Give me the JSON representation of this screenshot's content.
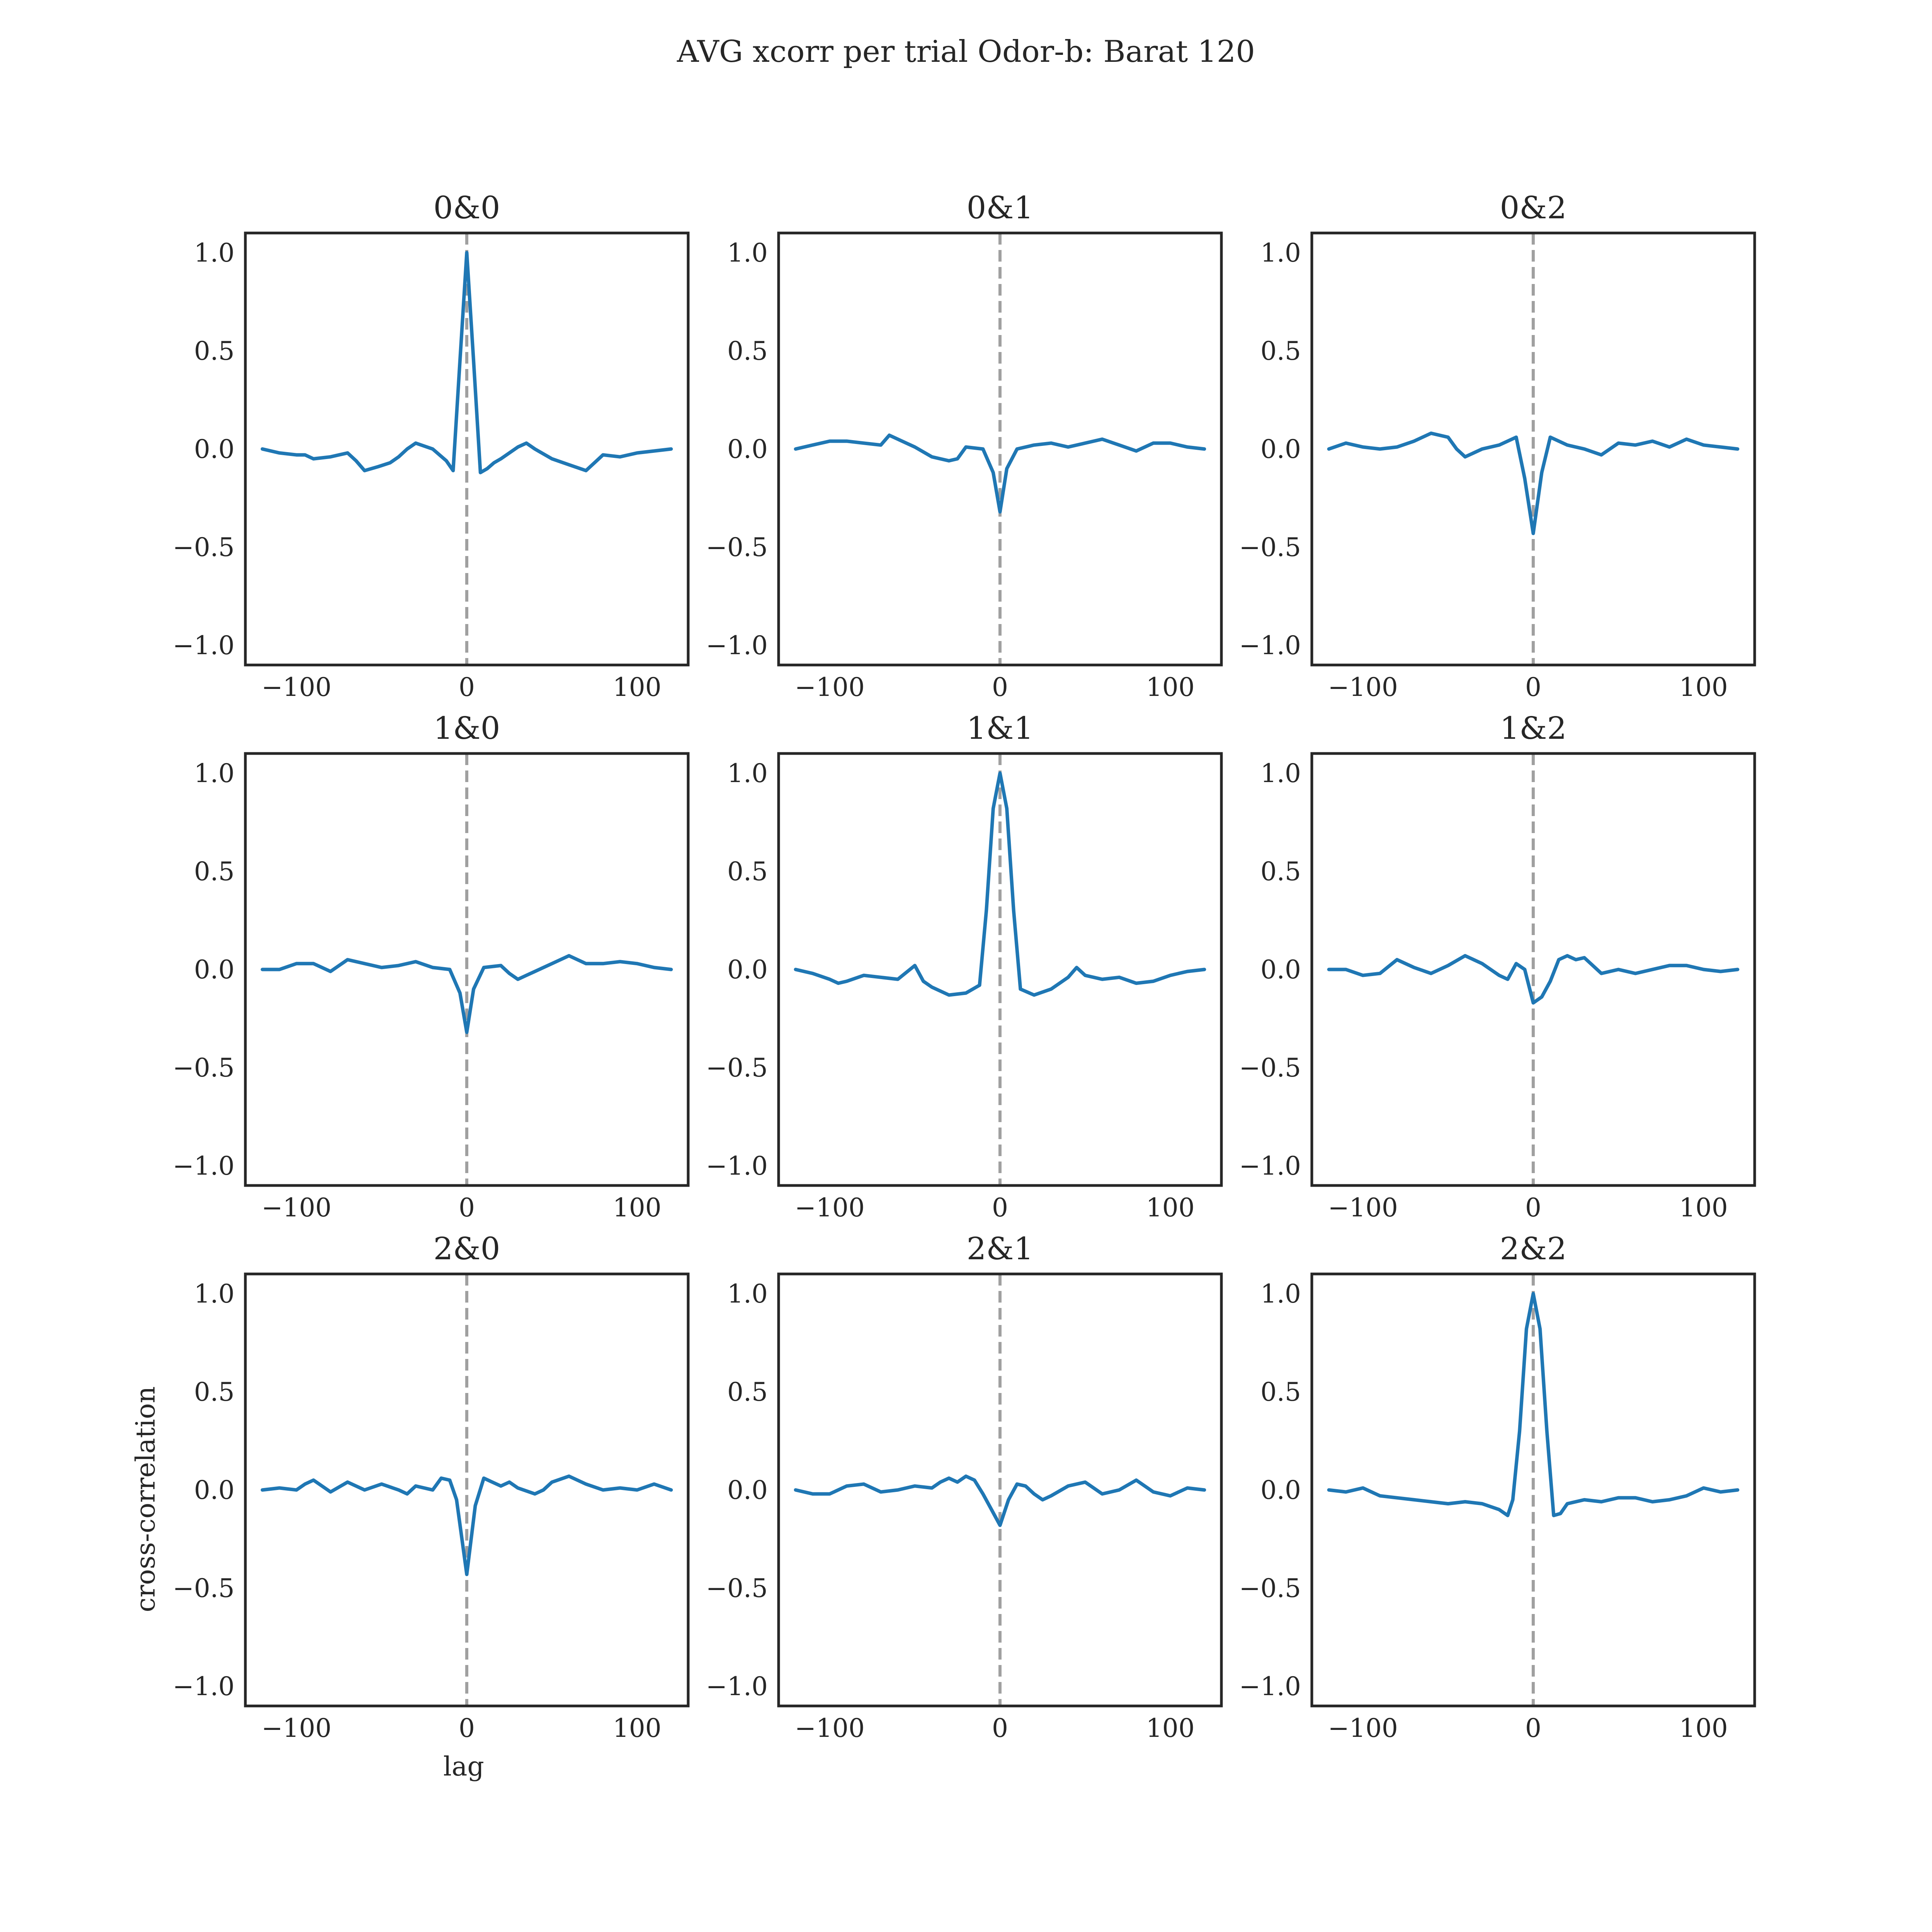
{
  "figure": {
    "title": "AVG xcorr per trial Odor-b: Barat 120",
    "xlabel": "lag",
    "ylabel": "cross-correlation"
  },
  "colors": {
    "line": "#1f77b4",
    "zero_line": "#a0a0a0",
    "axes_frame": "#262626",
    "background": "#ffffff"
  },
  "chart_data": [
    {
      "type": "line",
      "title": "0&0",
      "x": [
        -120,
        -110,
        -100,
        -95,
        -90,
        -80,
        -70,
        -65,
        -60,
        -52,
        -45,
        -40,
        -35,
        -30,
        -20,
        -12,
        -8,
        -4,
        0,
        4,
        8,
        12,
        16,
        20,
        30,
        35,
        40,
        50,
        60,
        70,
        75,
        80,
        90,
        100,
        110,
        120
      ],
      "y": [
        0.0,
        -0.02,
        -0.03,
        -0.03,
        -0.05,
        -0.04,
        -0.02,
        -0.06,
        -0.11,
        -0.09,
        -0.07,
        -0.04,
        0.0,
        0.03,
        0.0,
        -0.06,
        -0.11,
        0.45,
        1.0,
        0.45,
        -0.12,
        -0.1,
        -0.07,
        -0.05,
        0.01,
        0.03,
        0.0,
        -0.05,
        -0.08,
        -0.11,
        -0.07,
        -0.03,
        -0.04,
        -0.02,
        -0.01,
        0.0
      ],
      "xlim": [
        -130,
        130
      ],
      "ylim": [
        -1.1,
        1.1
      ],
      "xticks": [
        -100,
        0,
        100
      ],
      "yticks": [
        1.0,
        0.5,
        0.0,
        -0.5,
        -1.0
      ]
    },
    {
      "type": "line",
      "title": "0&1",
      "x": [
        -120,
        -110,
        -100,
        -90,
        -80,
        -70,
        -65,
        -60,
        -50,
        -40,
        -30,
        -25,
        -20,
        -10,
        -4,
        0,
        4,
        10,
        20,
        30,
        40,
        50,
        60,
        70,
        80,
        90,
        100,
        110,
        120
      ],
      "y": [
        0.0,
        0.02,
        0.04,
        0.04,
        0.03,
        0.02,
        0.07,
        0.05,
        0.01,
        -0.04,
        -0.06,
        -0.05,
        0.01,
        0.0,
        -0.12,
        -0.32,
        -0.1,
        0.0,
        0.02,
        0.03,
        0.01,
        0.03,
        0.05,
        0.02,
        -0.01,
        0.03,
        0.03,
        0.01,
        0.0
      ],
      "xlim": [
        -130,
        130
      ],
      "ylim": [
        -1.1,
        1.1
      ],
      "xticks": [
        -100,
        0,
        100
      ],
      "yticks": [
        1.0,
        0.5,
        0.0,
        -0.5,
        -1.0
      ]
    },
    {
      "type": "line",
      "title": "0&2",
      "x": [
        -120,
        -110,
        -100,
        -90,
        -80,
        -70,
        -60,
        -50,
        -45,
        -40,
        -30,
        -20,
        -10,
        -5,
        0,
        5,
        10,
        20,
        30,
        40,
        50,
        60,
        70,
        80,
        90,
        100,
        110,
        120
      ],
      "y": [
        0.0,
        0.03,
        0.01,
        0.0,
        0.01,
        0.04,
        0.08,
        0.06,
        0.0,
        -0.04,
        0.0,
        0.02,
        0.06,
        -0.15,
        -0.43,
        -0.12,
        0.06,
        0.02,
        0.0,
        -0.03,
        0.03,
        0.02,
        0.04,
        0.01,
        0.05,
        0.02,
        0.01,
        0.0
      ],
      "xlim": [
        -130,
        130
      ],
      "ylim": [
        -1.1,
        1.1
      ],
      "xticks": [
        -100,
        0,
        100
      ],
      "yticks": [
        1.0,
        0.5,
        0.0,
        -0.5,
        -1.0
      ]
    },
    {
      "type": "line",
      "title": "1&0",
      "x": [
        -120,
        -110,
        -100,
        -90,
        -80,
        -70,
        -60,
        -50,
        -40,
        -30,
        -20,
        -10,
        -4,
        0,
        4,
        10,
        20,
        25,
        30,
        35,
        40,
        50,
        60,
        70,
        80,
        90,
        100,
        110,
        120
      ],
      "y": [
        0.0,
        0.0,
        0.03,
        0.03,
        -0.01,
        0.05,
        0.03,
        0.01,
        0.02,
        0.04,
        0.01,
        0.0,
        -0.12,
        -0.32,
        -0.1,
        0.01,
        0.02,
        -0.02,
        -0.05,
        -0.03,
        -0.01,
        0.03,
        0.07,
        0.03,
        0.03,
        0.04,
        0.03,
        0.01,
        0.0
      ],
      "xlim": [
        -130,
        130
      ],
      "ylim": [
        -1.1,
        1.1
      ],
      "xticks": [
        -100,
        0,
        100
      ],
      "yticks": [
        1.0,
        0.5,
        0.0,
        -0.5,
        -1.0
      ]
    },
    {
      "type": "line",
      "title": "1&1",
      "x": [
        -120,
        -110,
        -100,
        -95,
        -90,
        -80,
        -70,
        -60,
        -50,
        -45,
        -40,
        -30,
        -20,
        -12,
        -8,
        -4,
        0,
        4,
        8,
        12,
        20,
        30,
        40,
        45,
        50,
        60,
        70,
        80,
        90,
        100,
        110,
        120
      ],
      "y": [
        0.0,
        -0.02,
        -0.05,
        -0.07,
        -0.06,
        -0.03,
        -0.04,
        -0.05,
        0.02,
        -0.06,
        -0.09,
        -0.13,
        -0.12,
        -0.08,
        0.3,
        0.82,
        1.0,
        0.82,
        0.3,
        -0.1,
        -0.13,
        -0.1,
        -0.04,
        0.01,
        -0.03,
        -0.05,
        -0.04,
        -0.07,
        -0.06,
        -0.03,
        -0.01,
        0.0
      ],
      "xlim": [
        -130,
        130
      ],
      "ylim": [
        -1.1,
        1.1
      ],
      "xticks": [
        -100,
        0,
        100
      ],
      "yticks": [
        1.0,
        0.5,
        0.0,
        -0.5,
        -1.0
      ]
    },
    {
      "type": "line",
      "title": "1&2",
      "x": [
        -120,
        -110,
        -100,
        -90,
        -80,
        -70,
        -60,
        -50,
        -40,
        -30,
        -20,
        -15,
        -10,
        -5,
        0,
        5,
        10,
        15,
        20,
        25,
        30,
        40,
        50,
        60,
        70,
        80,
        90,
        100,
        110,
        120
      ],
      "y": [
        0.0,
        0.0,
        -0.03,
        -0.02,
        0.05,
        0.01,
        -0.02,
        0.02,
        0.07,
        0.03,
        -0.03,
        -0.05,
        0.03,
        0.0,
        -0.17,
        -0.14,
        -0.06,
        0.05,
        0.07,
        0.05,
        0.06,
        -0.02,
        0.0,
        -0.02,
        0.0,
        0.02,
        0.02,
        0.0,
        -0.01,
        0.0
      ],
      "xlim": [
        -130,
        130
      ],
      "ylim": [
        -1.1,
        1.1
      ],
      "xticks": [
        -100,
        0,
        100
      ],
      "yticks": [
        1.0,
        0.5,
        0.0,
        -0.5,
        -1.0
      ]
    },
    {
      "type": "line",
      "title": "2&0",
      "x": [
        -120,
        -110,
        -100,
        -95,
        -90,
        -80,
        -70,
        -60,
        -50,
        -40,
        -35,
        -30,
        -20,
        -15,
        -10,
        -6,
        0,
        5,
        10,
        15,
        20,
        25,
        30,
        40,
        45,
        50,
        60,
        70,
        80,
        90,
        100,
        110,
        120
      ],
      "y": [
        0.0,
        0.01,
        0.0,
        0.03,
        0.05,
        -0.01,
        0.04,
        0.0,
        0.03,
        0.0,
        -0.02,
        0.02,
        0.0,
        0.06,
        0.05,
        -0.05,
        -0.43,
        -0.08,
        0.06,
        0.04,
        0.02,
        0.04,
        0.01,
        -0.02,
        0.0,
        0.04,
        0.07,
        0.03,
        0.0,
        0.01,
        0.0,
        0.03,
        0.0
      ],
      "xlim": [
        -130,
        130
      ],
      "ylim": [
        -1.1,
        1.1
      ],
      "xticks": [
        -100,
        0,
        100
      ],
      "yticks": [
        1.0,
        0.5,
        0.0,
        -0.5,
        -1.0
      ]
    },
    {
      "type": "line",
      "title": "2&1",
      "x": [
        -120,
        -110,
        -100,
        -90,
        -80,
        -70,
        -60,
        -50,
        -40,
        -35,
        -30,
        -25,
        -20,
        -15,
        -10,
        -5,
        0,
        5,
        10,
        15,
        20,
        25,
        30,
        40,
        50,
        60,
        70,
        80,
        90,
        100,
        110,
        120
      ],
      "y": [
        0.0,
        -0.02,
        -0.02,
        0.02,
        0.03,
        -0.01,
        0.0,
        0.02,
        0.01,
        0.04,
        0.06,
        0.04,
        0.07,
        0.05,
        -0.02,
        -0.1,
        -0.18,
        -0.05,
        0.03,
        0.02,
        -0.02,
        -0.05,
        -0.03,
        0.02,
        0.04,
        -0.02,
        0.0,
        0.05,
        -0.01,
        -0.03,
        0.01,
        0.0
      ],
      "xlim": [
        -130,
        130
      ],
      "ylim": [
        -1.1,
        1.1
      ],
      "xticks": [
        -100,
        0,
        100
      ],
      "yticks": [
        1.0,
        0.5,
        0.0,
        -0.5,
        -1.0
      ]
    },
    {
      "type": "line",
      "title": "2&2",
      "x": [
        -120,
        -110,
        -100,
        -90,
        -80,
        -70,
        -60,
        -50,
        -40,
        -30,
        -20,
        -15,
        -12,
        -8,
        -4,
        0,
        4,
        8,
        12,
        16,
        20,
        30,
        40,
        50,
        60,
        70,
        80,
        90,
        100,
        110,
        120
      ],
      "y": [
        0.0,
        -0.01,
        0.01,
        -0.03,
        -0.04,
        -0.05,
        -0.06,
        -0.07,
        -0.06,
        -0.07,
        -0.1,
        -0.13,
        -0.05,
        0.3,
        0.82,
        1.0,
        0.82,
        0.3,
        -0.13,
        -0.12,
        -0.07,
        -0.05,
        -0.06,
        -0.04,
        -0.04,
        -0.06,
        -0.05,
        -0.03,
        0.01,
        -0.01,
        0.0
      ],
      "xlim": [
        -130,
        130
      ],
      "ylim": [
        -1.1,
        1.1
      ],
      "xticks": [
        -100,
        0,
        100
      ],
      "yticks": [
        1.0,
        0.5,
        0.0,
        -0.5,
        -1.0
      ]
    }
  ]
}
